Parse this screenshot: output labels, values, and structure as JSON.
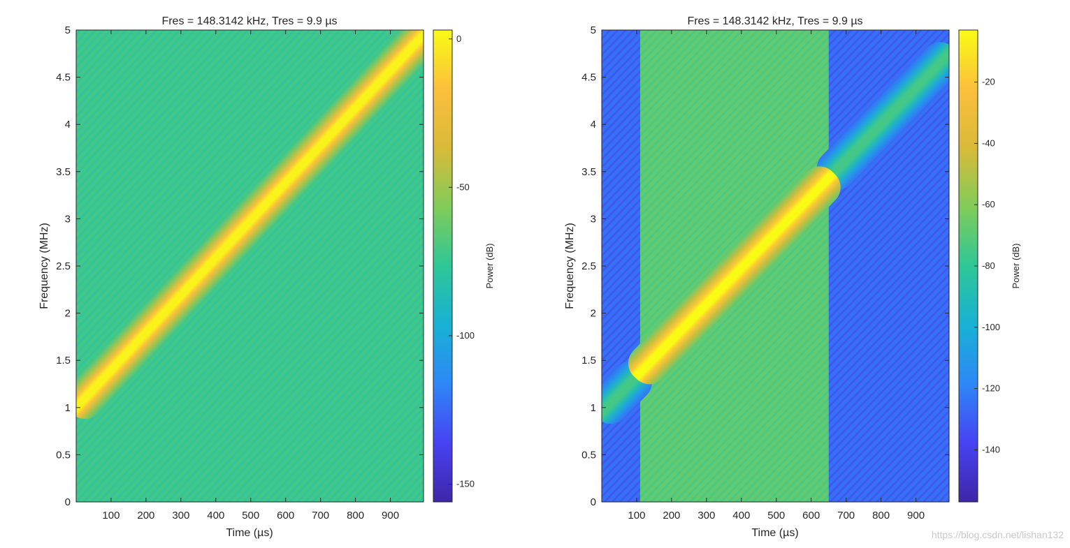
{
  "figure": {
    "watermark": "https://blog.csdn.net/lishan132",
    "colormap": [
      "#3e26a8",
      "#4742f3",
      "#2e87f7",
      "#18b1d5",
      "#2ec797",
      "#81cc59",
      "#d9ba39",
      "#fcbf3c",
      "#f9fb15"
    ]
  },
  "chart_data": [
    {
      "type": "heatmap",
      "title": "Fres = 148.3142 kHz, Tres = 9.9 µs",
      "xlabel": "Time (µs)",
      "ylabel": "Frequency (MHz)",
      "xlim": [
        0,
        995
      ],
      "ylim": [
        0,
        5
      ],
      "xticks": [
        100,
        200,
        300,
        400,
        500,
        600,
        700,
        800,
        900
      ],
      "yticks": [
        0,
        0.5,
        1,
        1.5,
        2,
        2.5,
        3,
        3.5,
        4,
        4.5,
        5
      ],
      "colorbar": {
        "label": "Power (dB)",
        "limits": [
          -156,
          3
        ],
        "ticks": [
          0,
          -50,
          -100,
          -150
        ]
      },
      "background_db": -72,
      "chirp": {
        "start_time_us": 0,
        "start_freq_mhz": 1.0,
        "end_time_us": 995,
        "end_freq_mhz": 4.95,
        "peak_db": 0
      },
      "description": "linear chirp ridge"
    },
    {
      "type": "heatmap",
      "title": "Fres = 148.3142 kHz, Tres = 9.9 µs",
      "xlabel": "Time (µs)",
      "ylabel": "Frequency (MHz)",
      "xlim": [
        0,
        995
      ],
      "ylim": [
        0,
        5
      ],
      "xticks": [
        100,
        200,
        300,
        400,
        500,
        600,
        700,
        800,
        900
      ],
      "yticks": [
        0,
        0.5,
        1,
        1.5,
        2,
        2.5,
        3,
        3.5,
        4,
        4.5,
        5
      ],
      "colorbar": {
        "label": "Power (dB)",
        "limits": [
          -157,
          -3
        ],
        "ticks": [
          -20,
          -40,
          -60,
          -80,
          -100,
          -120,
          -140
        ]
      },
      "gated_window_us": [
        110,
        650
      ],
      "background_db_inside": -68,
      "background_db_outside": -125,
      "chirp": {
        "start_time_us": 0,
        "start_freq_mhz": 0.95,
        "end_time_us": 995,
        "end_freq_mhz": 4.75,
        "peak_db_inside": -3,
        "peak_db_outside": -75
      }
    }
  ]
}
